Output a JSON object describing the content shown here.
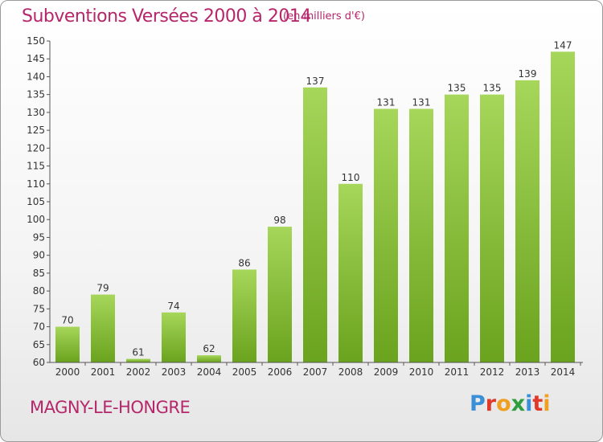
{
  "title": "Subventions Versées 2000 à 2014",
  "subtitle": "(en milliers d'€)",
  "place": "MAGNY-LE-HONGRE",
  "logo": {
    "letters": [
      "P",
      "r",
      "o",
      "x",
      "i",
      "t",
      "i"
    ],
    "colors": [
      "#3a8fd6",
      "#e0392b",
      "#f0a020",
      "#2e9e3e",
      "#3a8fd6",
      "#e0392b",
      "#f0a020"
    ]
  },
  "colors": {
    "bar_top": "#a6d65a",
    "bar_bottom": "#6aa31d",
    "accent": "#b5266a"
  },
  "chart_data": {
    "type": "bar",
    "categories": [
      "2000",
      "2001",
      "2002",
      "2003",
      "2004",
      "2005",
      "2006",
      "2007",
      "2008",
      "2009",
      "2010",
      "2011",
      "2012",
      "2013",
      "2014"
    ],
    "values": [
      70,
      79,
      61,
      74,
      62,
      86,
      98,
      137,
      110,
      131,
      131,
      135,
      135,
      139,
      147
    ],
    "ylim": [
      60,
      150
    ],
    "ytick_step": 5,
    "grid": false
  }
}
